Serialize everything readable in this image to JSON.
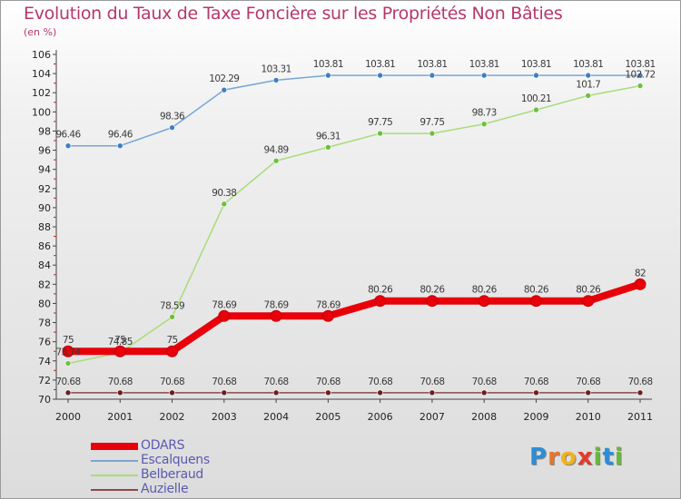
{
  "header": {
    "title": "Evolution du Taux de Taxe Foncière sur les Propriétés Non Bâties",
    "subtitle": "(en %)"
  },
  "logo": {
    "letters": [
      "P",
      "r",
      "o",
      "x",
      "i",
      "t",
      "i"
    ],
    "colors": [
      "#2b8ed6",
      "#e8742a",
      "#f2b21b",
      "#e23a2d",
      "#67b83a",
      "#2b8ed6",
      "#67b83a"
    ]
  },
  "chart_data": {
    "type": "line",
    "title": "Evolution du Taux de Taxe Foncière sur les Propriétés Non Bâties",
    "subtitle": "(en %)",
    "x": [
      "2000",
      "2001",
      "2002",
      "2003",
      "2004",
      "2005",
      "2006",
      "2007",
      "2008",
      "2009",
      "2010",
      "2011"
    ],
    "ylim": [
      70,
      106
    ],
    "yticks": [
      70,
      72,
      74,
      76,
      78,
      80,
      82,
      84,
      86,
      88,
      90,
      92,
      94,
      96,
      98,
      100,
      102,
      104,
      106
    ],
    "grid": false,
    "legend_position": "bottom-left",
    "series": [
      {
        "name": "ODARS",
        "color": "#e8000b",
        "marker_color": "#e8000b",
        "values": [
          75,
          75,
          75,
          78.69,
          78.69,
          78.69,
          80.26,
          80.26,
          80.26,
          80.26,
          80.26,
          82
        ],
        "labels": [
          "75",
          "75",
          "75",
          "78.69",
          "78.69",
          "78.69",
          "80.26",
          "80.26",
          "80.26",
          "80.26",
          "80.26",
          "82"
        ]
      },
      {
        "name": "Escalquens",
        "color": "#7aa6d6",
        "marker_color": "#3d7fc4",
        "values": [
          96.46,
          96.46,
          98.36,
          102.29,
          103.31,
          103.81,
          103.81,
          103.81,
          103.81,
          103.81,
          103.81,
          103.81
        ],
        "labels": [
          "96.46",
          "96.46",
          "98.36",
          "102.29",
          "103.31",
          "103.81",
          "103.81",
          "103.81",
          "103.81",
          "103.81",
          "103.81",
          "103.81"
        ]
      },
      {
        "name": "Belberaud",
        "color": "#a9dc7a",
        "marker_color": "#6cc03a",
        "values": [
          73.74,
          74.85,
          78.59,
          90.38,
          94.89,
          96.31,
          97.75,
          97.75,
          98.73,
          100.21,
          101.7,
          102.72
        ],
        "labels": [
          "73.74",
          "74.85",
          "78.59",
          "90.38",
          "94.89",
          "96.31",
          "97.75",
          "97.75",
          "98.73",
          "100.21",
          "101.7",
          "102.72"
        ]
      },
      {
        "name": "Auzielle",
        "color": "#8a4a4a",
        "marker_color": "#6b1e1e",
        "values": [
          70.68,
          70.68,
          70.68,
          70.68,
          70.68,
          70.68,
          70.68,
          70.68,
          70.68,
          70.68,
          70.68,
          70.68
        ],
        "labels": [
          "70.68",
          "70.68",
          "70.68",
          "70.68",
          "70.68",
          "70.68",
          "70.68",
          "70.68",
          "70.68",
          "70.68",
          "70.68",
          "70.68"
        ]
      }
    ]
  }
}
